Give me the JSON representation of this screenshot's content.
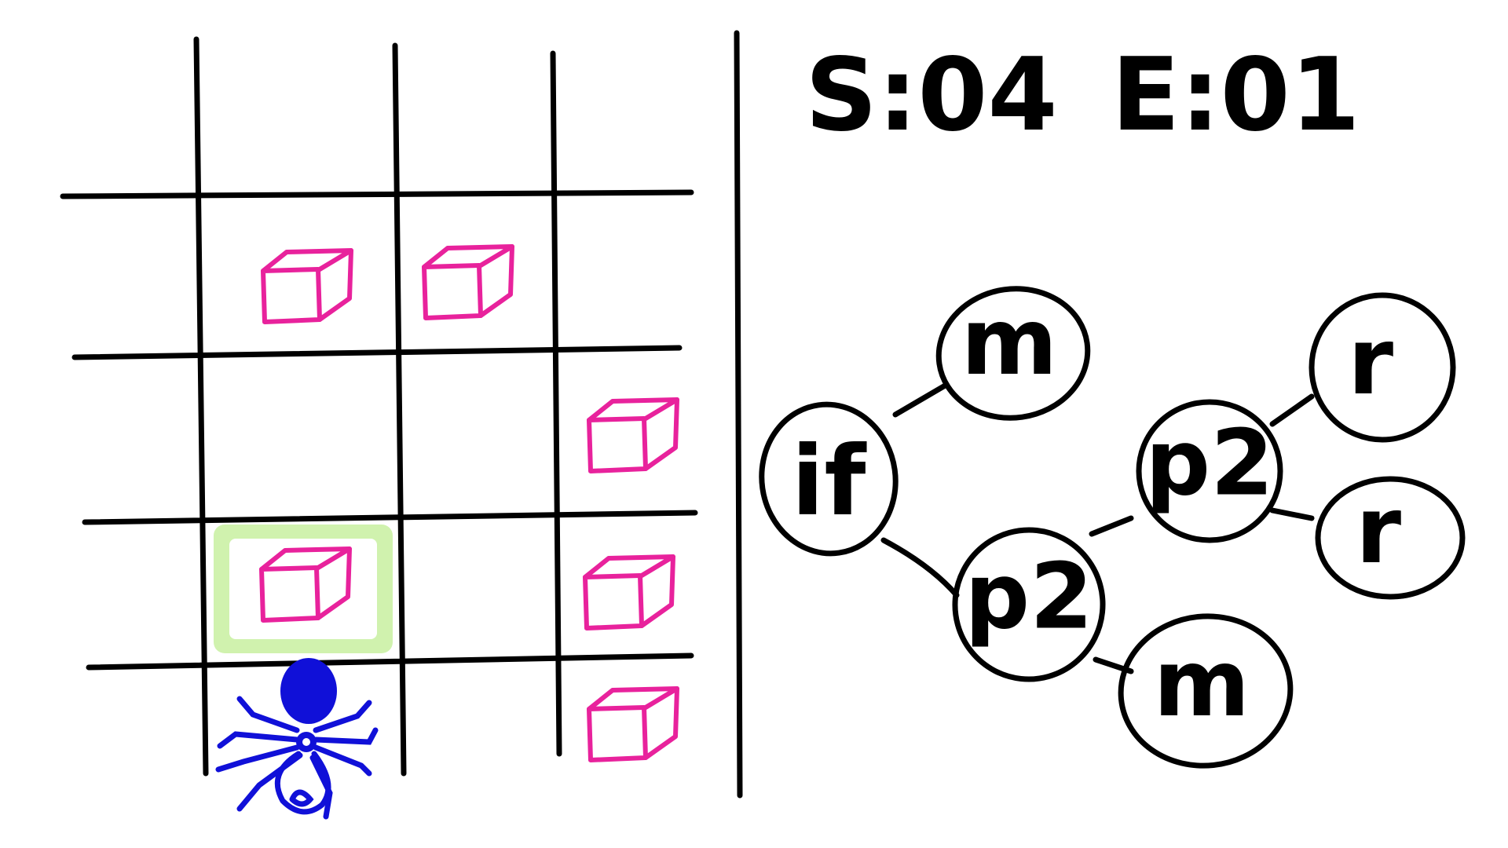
{
  "hud": {
    "steps_label": "S:04",
    "energy_label": "E:01"
  },
  "colors": {
    "ink": "#000000",
    "box": "#e8229c",
    "spider": "#1010d8",
    "highlight": "#b8ea8a"
  },
  "grid": {
    "rows": 4,
    "cols": 3,
    "boxes": [
      {
        "row": 0,
        "col": 0
      },
      {
        "row": 0,
        "col": 1
      },
      {
        "row": 1,
        "col": 2
      },
      {
        "row": 2,
        "col": 0
      },
      {
        "row": 2,
        "col": 2
      },
      {
        "row": 3,
        "col": 2
      }
    ],
    "highlighted_cell": {
      "row": 2,
      "col": 0
    },
    "player_cell": {
      "row": 3,
      "col": 0
    }
  },
  "program_tree": {
    "nodes": {
      "if": "if",
      "m1": "m",
      "p2a": "p2",
      "p2b": "p2",
      "r1": "r",
      "r2": "r",
      "m2": "m"
    }
  }
}
